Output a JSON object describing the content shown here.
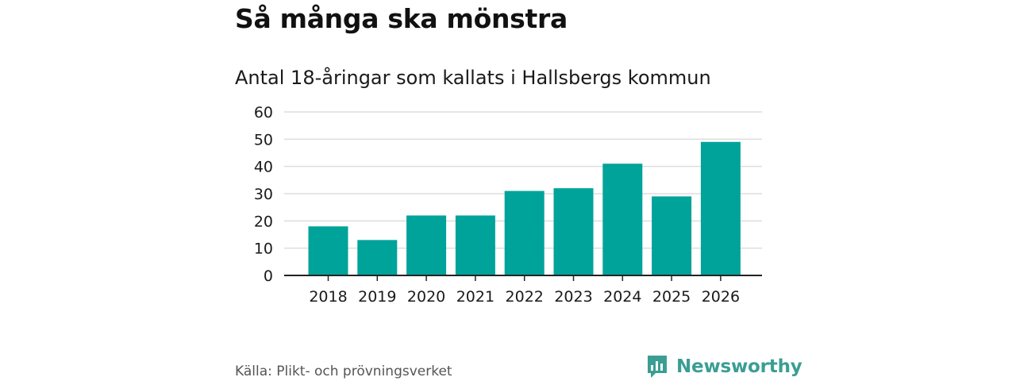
{
  "title": "Så många ska mönstra",
  "subtitle": "Antal 18-åringar som kallats i Hallsbergs kommun",
  "source": "Källa: Plikt- och prövningsverket",
  "brand": {
    "name": "Newsworthy",
    "icon": "newsworthy-logo-icon",
    "color": "#3a9e93"
  },
  "chart_data": {
    "type": "bar",
    "title": "Så många ska mönstra",
    "subtitle": "Antal 18-åringar som kallats i Hallsbergs kommun",
    "xlabel": "",
    "ylabel": "",
    "categories": [
      "2018",
      "2019",
      "2020",
      "2021",
      "2022",
      "2023",
      "2024",
      "2025",
      "2026"
    ],
    "values": [
      18,
      13,
      22,
      22,
      31,
      32,
      41,
      29,
      49
    ],
    "ylim": [
      0,
      60
    ],
    "yticks": [
      0,
      10,
      20,
      30,
      40,
      50,
      60
    ],
    "grid": true,
    "bar_color": "#00a39a",
    "grid_color": "#dddddd",
    "axis_color": "#222222"
  }
}
